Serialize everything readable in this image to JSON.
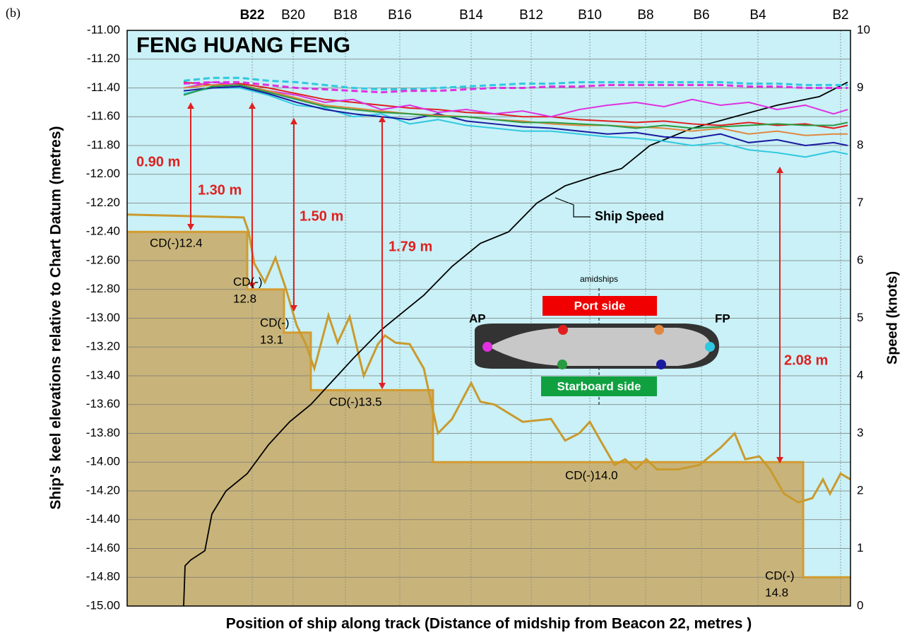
{
  "chart_data": {
    "type": "line",
    "panel_label": "(b)",
    "title": "FENG HUANG FENG",
    "x_label": "Position of ship along track (Distance of midship from Beacon 22, metres )",
    "y_label": "Ship's keel elevations relative to Chart Datum (metres)",
    "y2_label": "Speed (knots)",
    "xlim": [
      0,
      1024
    ],
    "ylim": [
      -15,
      -11
    ],
    "y2lim": [
      0,
      10
    ],
    "grid": true,
    "background": "#c9f1f7",
    "xticks": [
      {
        "value": 177,
        "label": "B22"
      },
      {
        "value": 235,
        "label": "B20"
      },
      {
        "value": 309,
        "label": "B18"
      },
      {
        "value": 386,
        "label": "B16"
      },
      {
        "value": 487,
        "label": "B14"
      },
      {
        "value": 572,
        "label": "B12"
      },
      {
        "value": 655,
        "label": "B10"
      },
      {
        "value": 734,
        "label": "B8"
      },
      {
        "value": 813,
        "label": "B6"
      },
      {
        "value": 893,
        "label": "B4"
      },
      {
        "value": 1010,
        "label": "B2"
      }
    ],
    "yticks": [
      {
        "value": -11,
        "label": "-11.00"
      },
      {
        "value": -11.2,
        "label": "-11.20"
      },
      {
        "value": -11.4,
        "label": "-11.40"
      },
      {
        "value": -11.6,
        "label": "-11.60"
      },
      {
        "value": -11.8,
        "label": "-11.80"
      },
      {
        "value": -12,
        "label": "-12.00"
      },
      {
        "value": -12.2,
        "label": "-12.20"
      },
      {
        "value": -12.4,
        "label": "-12.40"
      },
      {
        "value": -12.6,
        "label": "-12.60"
      },
      {
        "value": -12.8,
        "label": "-12.80"
      },
      {
        "value": -13,
        "label": "-13.00"
      },
      {
        "value": -13.2,
        "label": "-13.20"
      },
      {
        "value": -13.4,
        "label": "-13.40"
      },
      {
        "value": -13.6,
        "label": "-13.60"
      },
      {
        "value": -13.8,
        "label": "-13.80"
      },
      {
        "value": -14,
        "label": "-14.00"
      },
      {
        "value": -14.2,
        "label": "-14.20"
      },
      {
        "value": -14.4,
        "label": "-14.40"
      },
      {
        "value": -14.6,
        "label": "-14.60"
      },
      {
        "value": -14.8,
        "label": "-14.80"
      },
      {
        "value": -15,
        "label": "-15.00"
      }
    ],
    "y2ticks": [
      0,
      1,
      2,
      3,
      4,
      5,
      6,
      7,
      8,
      9,
      10
    ],
    "design_depth": {
      "color": "#d49a30",
      "fill": "#c8b47a",
      "x": [
        0,
        170,
        170,
        222,
        222,
        260,
        260,
        433,
        433,
        957,
        957,
        1024
      ],
      "values": [
        -12.4,
        -12.4,
        -12.8,
        -12.8,
        -13.1,
        -13.1,
        -13.5,
        -13.5,
        -14.0,
        -14.0,
        -14.8,
        -14.8
      ]
    },
    "bed_profile": {
      "color": "#c99a2e",
      "x": [
        0,
        165,
        172,
        180,
        195,
        210,
        225,
        240,
        253,
        265,
        285,
        298,
        315,
        330,
        335,
        355,
        365,
        380,
        400,
        420,
        440,
        460,
        487,
        500,
        520,
        560,
        600,
        620,
        640,
        655,
        670,
        690,
        705,
        720,
        735,
        750,
        780,
        810,
        840,
        860,
        875,
        895,
        910,
        930,
        950,
        970,
        985,
        995,
        1010,
        1024
      ],
      "values": [
        -12.28,
        -12.3,
        -12.4,
        -12.62,
        -12.75,
        -12.58,
        -12.8,
        -13.05,
        -13.18,
        -13.35,
        -12.98,
        -13.17,
        -12.99,
        -13.3,
        -13.4,
        -13.18,
        -13.12,
        -13.17,
        -13.18,
        -13.35,
        -13.8,
        -13.7,
        -13.45,
        -13.58,
        -13.6,
        -13.72,
        -13.7,
        -13.85,
        -13.8,
        -13.72,
        -13.85,
        -14.02,
        -13.98,
        -14.05,
        -13.98,
        -14.05,
        -14.05,
        -14.02,
        -13.9,
        -13.8,
        -13.98,
        -13.96,
        -14.05,
        -14.22,
        -14.28,
        -14.25,
        -14.12,
        -14.22,
        -14.08,
        -14.12
      ]
    },
    "x": [
      80,
      120,
      160,
      200,
      240,
      280,
      320,
      360,
      400,
      440,
      480,
      520,
      560,
      600,
      640,
      680,
      720,
      760,
      800,
      840,
      880,
      920,
      960,
      1000,
      1020
    ],
    "series": [
      {
        "color": "#e02020",
        "values": [
          -11.36,
          -11.38,
          -11.37,
          -11.4,
          -11.44,
          -11.48,
          -11.5,
          -11.52,
          -11.54,
          -11.55,
          -11.57,
          -11.58,
          -11.6,
          -11.6,
          -11.62,
          -11.63,
          -11.64,
          -11.63,
          -11.65,
          -11.66,
          -11.64,
          -11.66,
          -11.65,
          -11.68,
          -11.66
        ]
      },
      {
        "color": "#e030e0",
        "values": [
          -11.4,
          -11.36,
          -11.38,
          -11.42,
          -11.45,
          -11.5,
          -11.48,
          -11.55,
          -11.52,
          -11.57,
          -11.55,
          -11.58,
          -11.56,
          -11.6,
          -11.55,
          -11.52,
          -11.5,
          -11.53,
          -11.48,
          -11.52,
          -11.5,
          -11.55,
          -11.52,
          -11.58,
          -11.55
        ]
      },
      {
        "color": "#30c8e0",
        "values": [
          -11.44,
          -11.4,
          -11.4,
          -11.45,
          -11.52,
          -11.54,
          -11.6,
          -11.58,
          -11.65,
          -11.62,
          -11.66,
          -11.68,
          -11.7,
          -11.7,
          -11.72,
          -11.74,
          -11.75,
          -11.77,
          -11.8,
          -11.78,
          -11.83,
          -11.85,
          -11.88,
          -11.84,
          -11.86
        ]
      },
      {
        "color": "#1a1aa0",
        "values": [
          -11.42,
          -11.4,
          -11.39,
          -11.44,
          -11.5,
          -11.55,
          -11.58,
          -11.6,
          -11.62,
          -11.58,
          -11.63,
          -11.65,
          -11.67,
          -11.68,
          -11.7,
          -11.72,
          -11.71,
          -11.74,
          -11.75,
          -11.72,
          -11.78,
          -11.76,
          -11.8,
          -11.78,
          -11.8
        ]
      },
      {
        "color": "#e08840",
        "values": [
          -11.4,
          -11.38,
          -11.38,
          -11.42,
          -11.47,
          -11.52,
          -11.54,
          -11.56,
          -11.58,
          -11.59,
          -11.6,
          -11.62,
          -11.63,
          -11.65,
          -11.66,
          -11.66,
          -11.67,
          -11.68,
          -11.7,
          -11.68,
          -11.72,
          -11.7,
          -11.73,
          -11.72,
          -11.72
        ]
      },
      {
        "color": "#2a9a40",
        "values": [
          -11.45,
          -11.39,
          -11.38,
          -11.43,
          -11.48,
          -11.53,
          -11.55,
          -11.57,
          -11.58,
          -11.6,
          -11.6,
          -11.62,
          -11.64,
          -11.64,
          -11.65,
          -11.66,
          -11.68,
          -11.66,
          -11.68,
          -11.67,
          -11.66,
          -11.65,
          -11.66,
          -11.66,
          -11.64
        ]
      },
      {
        "color": "#30c8e0",
        "dashed": true,
        "values": [
          -11.35,
          -11.33,
          -11.33,
          -11.35,
          -11.36,
          -11.38,
          -11.4,
          -11.41,
          -11.41,
          -11.4,
          -11.39,
          -11.38,
          -11.37,
          -11.37,
          -11.36,
          -11.36,
          -11.36,
          -11.36,
          -11.36,
          -11.36,
          -11.37,
          -11.37,
          -11.38,
          -11.38,
          -11.38
        ]
      },
      {
        "color": "#e030e0",
        "dashed": true,
        "values": [
          -11.37,
          -11.36,
          -11.36,
          -11.38,
          -11.4,
          -11.41,
          -11.42,
          -11.43,
          -11.42,
          -11.42,
          -11.41,
          -11.4,
          -11.4,
          -11.39,
          -11.39,
          -11.38,
          -11.38,
          -11.38,
          -11.38,
          -11.38,
          -11.39,
          -11.39,
          -11.4,
          -11.4,
          -11.4
        ]
      }
    ],
    "speed": {
      "color": "#000000",
      "axis": "y2",
      "label": "Ship Speed",
      "x": [
        80,
        82,
        90,
        110,
        120,
        140,
        170,
        200,
        230,
        260,
        290,
        320,
        360,
        390,
        420,
        460,
        500,
        540,
        580,
        620,
        670,
        700,
        740,
        800,
        860,
        920,
        980,
        1020
      ],
      "values": [
        0,
        0.7,
        0.8,
        0.96,
        1.6,
        2.0,
        2.3,
        2.8,
        3.2,
        3.5,
        3.9,
        4.3,
        4.8,
        5.1,
        5.4,
        5.9,
        6.3,
        6.5,
        7.0,
        7.3,
        7.5,
        7.6,
        8.0,
        8.3,
        8.5,
        8.7,
        8.85,
        9.1
      ]
    },
    "clearances": [
      "0.90 m",
      "1.30 m",
      "1.50 m",
      "1.79 m",
      "2.08 m"
    ],
    "depth_labels": [
      [
        "CD(-)12.4"
      ],
      [
        "CD(-)",
        "12.8"
      ],
      [
        "CD(-)",
        "13.1"
      ],
      [
        "CD(-)13.5"
      ],
      [
        "CD(-)14.0"
      ],
      [
        "CD(-)",
        "14.8"
      ]
    ],
    "inset": {
      "midline": "amidships",
      "port": "Port side",
      "starboard": "Starboard side",
      "aft": "AP",
      "fore": "FP"
    }
  }
}
